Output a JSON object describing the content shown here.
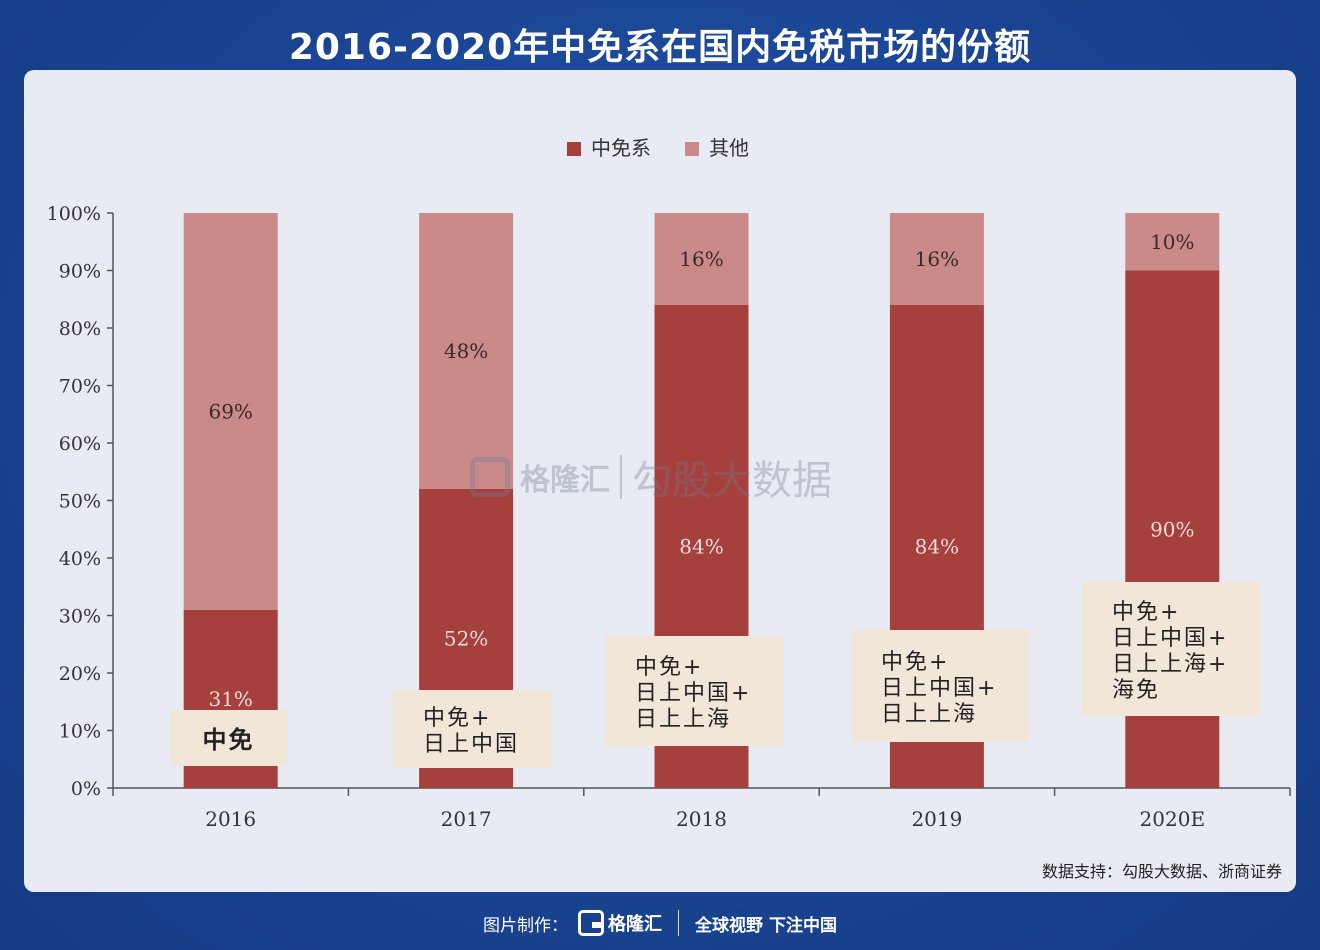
{
  "title": "2016-2020年中免系在国内免税市场的份额",
  "source": "数据支持：勾股大数据、浙商证券",
  "footer": {
    "made_by": "图片制作：",
    "logo_text": "格隆汇",
    "slogan": "全球视野 下注中国"
  },
  "watermark": {
    "logo_text": "格隆汇",
    "brand": "勾股大数据"
  },
  "colors": {
    "zhongmian": "#a6403d",
    "others": "#c98a89",
    "annotation_bg": "#f2e6d9"
  },
  "chart_data": {
    "type": "bar",
    "stacked": true,
    "categories": [
      "2016",
      "2017",
      "2018",
      "2019",
      "2020E"
    ],
    "series": [
      {
        "name": "中免系",
        "values": [
          31,
          52,
          84,
          84,
          90
        ],
        "labels": [
          "31%",
          "52%",
          "84%",
          "84%",
          "90%"
        ]
      },
      {
        "name": "其他",
        "values": [
          69,
          48,
          16,
          16,
          10
        ],
        "labels": [
          "69%",
          "48%",
          "16%",
          "16%",
          "10%"
        ]
      }
    ],
    "ylim": [
      0,
      100
    ],
    "yticks": [
      "0%",
      "10%",
      "20%",
      "30%",
      "40%",
      "50%",
      "60%",
      "70%",
      "80%",
      "90%",
      "100%"
    ],
    "legend_position": "top-center",
    "grid": false,
    "annotations": [
      {
        "category": "2016",
        "lines": [
          "中免"
        ]
      },
      {
        "category": "2017",
        "lines": [
          "中免+",
          "日上中国"
        ]
      },
      {
        "category": "2018",
        "lines": [
          "中免+",
          "日上中国+",
          "日上上海"
        ]
      },
      {
        "category": "2019",
        "lines": [
          "中免+",
          "日上中国+",
          "日上上海"
        ]
      },
      {
        "category": "2020E",
        "lines": [
          "中免+",
          "日上中国+",
          "日上上海+",
          "海免"
        ]
      }
    ]
  }
}
